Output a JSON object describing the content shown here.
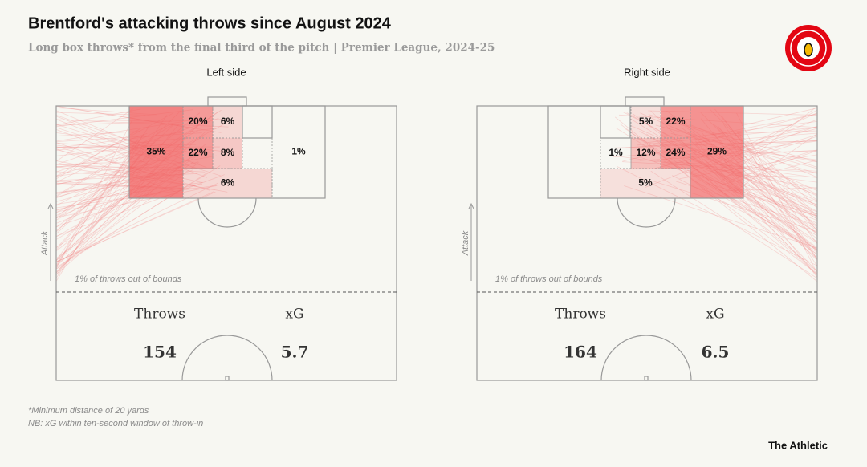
{
  "header": {
    "title": "Brentford's attacking throws since August 2024",
    "subtitle": "Long box throws* from the final third of the pitch | Premier League, 2024-25"
  },
  "panels": [
    {
      "title": "Left side",
      "zones": [
        "35%",
        "20%",
        "6%",
        "22%",
        "8%",
        "6%",
        "1%"
      ],
      "out_of_bounds": "1% of throws out of bounds",
      "axis_label": "Attack",
      "stats": [
        {
          "label": "Throws",
          "value": "154"
        },
        {
          "label": "xG",
          "value": "5.7"
        }
      ]
    },
    {
      "title": "Right side",
      "zones": [
        "29%",
        "22%",
        "5%",
        "24%",
        "12%",
        "1%",
        "5%"
      ],
      "out_of_bounds": "1% of throws out of bounds",
      "axis_label": "Attack",
      "stats": [
        {
          "label": "Throws",
          "value": "164"
        },
        {
          "label": "xG",
          "value": "6.5"
        }
      ]
    }
  ],
  "footnotes": [
    "*Minimum distance of 20 yards",
    "NB: xG within ten-second window of throw-in"
  ],
  "brand": "The Athletic"
}
